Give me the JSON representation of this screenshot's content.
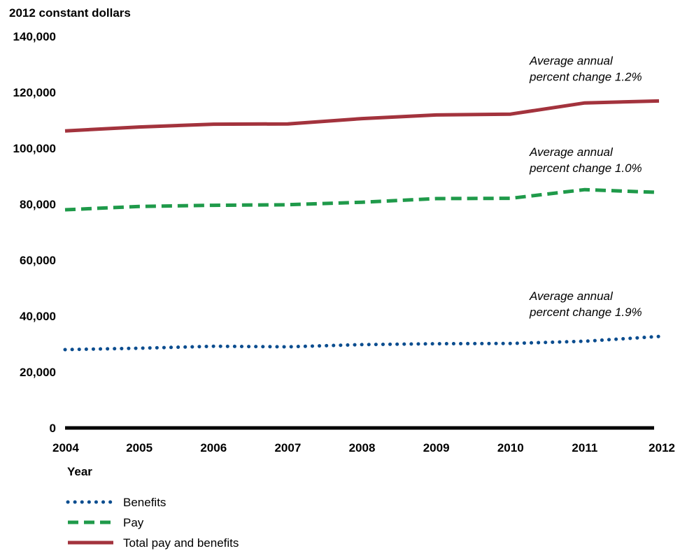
{
  "colors": {
    "benefits": "#0b4d8f",
    "pay": "#1f9a4a",
    "total": "#a3333d",
    "axis": "#000000"
  },
  "chart_data": {
    "type": "line",
    "ylabel": "2012 constant dollars",
    "xlabel": "Year",
    "x": [
      "2004",
      "2005",
      "2006",
      "2007",
      "2008",
      "2009",
      "2010",
      "2011",
      "2012"
    ],
    "ylim": [
      0,
      140000
    ],
    "yticks": [
      "0",
      "20,000",
      "40,000",
      "60,000",
      "80,000",
      "100,000",
      "120,000",
      "140,000"
    ],
    "series": [
      {
        "key": "benefits",
        "name": "Benefits",
        "style": "dotted",
        "values": [
          28000,
          28500,
          29200,
          29000,
          29800,
          30100,
          30200,
          31000,
          32700
        ]
      },
      {
        "key": "pay",
        "name": "Pay",
        "style": "dashed",
        "values": [
          78000,
          79200,
          79600,
          79800,
          80700,
          82000,
          82100,
          85200,
          84200
        ]
      },
      {
        "key": "total",
        "name": "Total pay and benefits",
        "style": "solid",
        "values": [
          106200,
          107600,
          108600,
          108700,
          110600,
          111900,
          112200,
          116200,
          116900
        ]
      }
    ],
    "annotations": [
      {
        "series": "total",
        "line1": "Average annual",
        "line2": "percent change 1.2%"
      },
      {
        "series": "pay",
        "line1": "Average annual",
        "line2": "percent change 1.0%"
      },
      {
        "series": "benefits",
        "line1": "Average annual",
        "line2": "percent change 1.9%"
      }
    ],
    "legend": [
      "Benefits",
      "Pay",
      "Total pay and benefits"
    ],
    "grid": false
  }
}
